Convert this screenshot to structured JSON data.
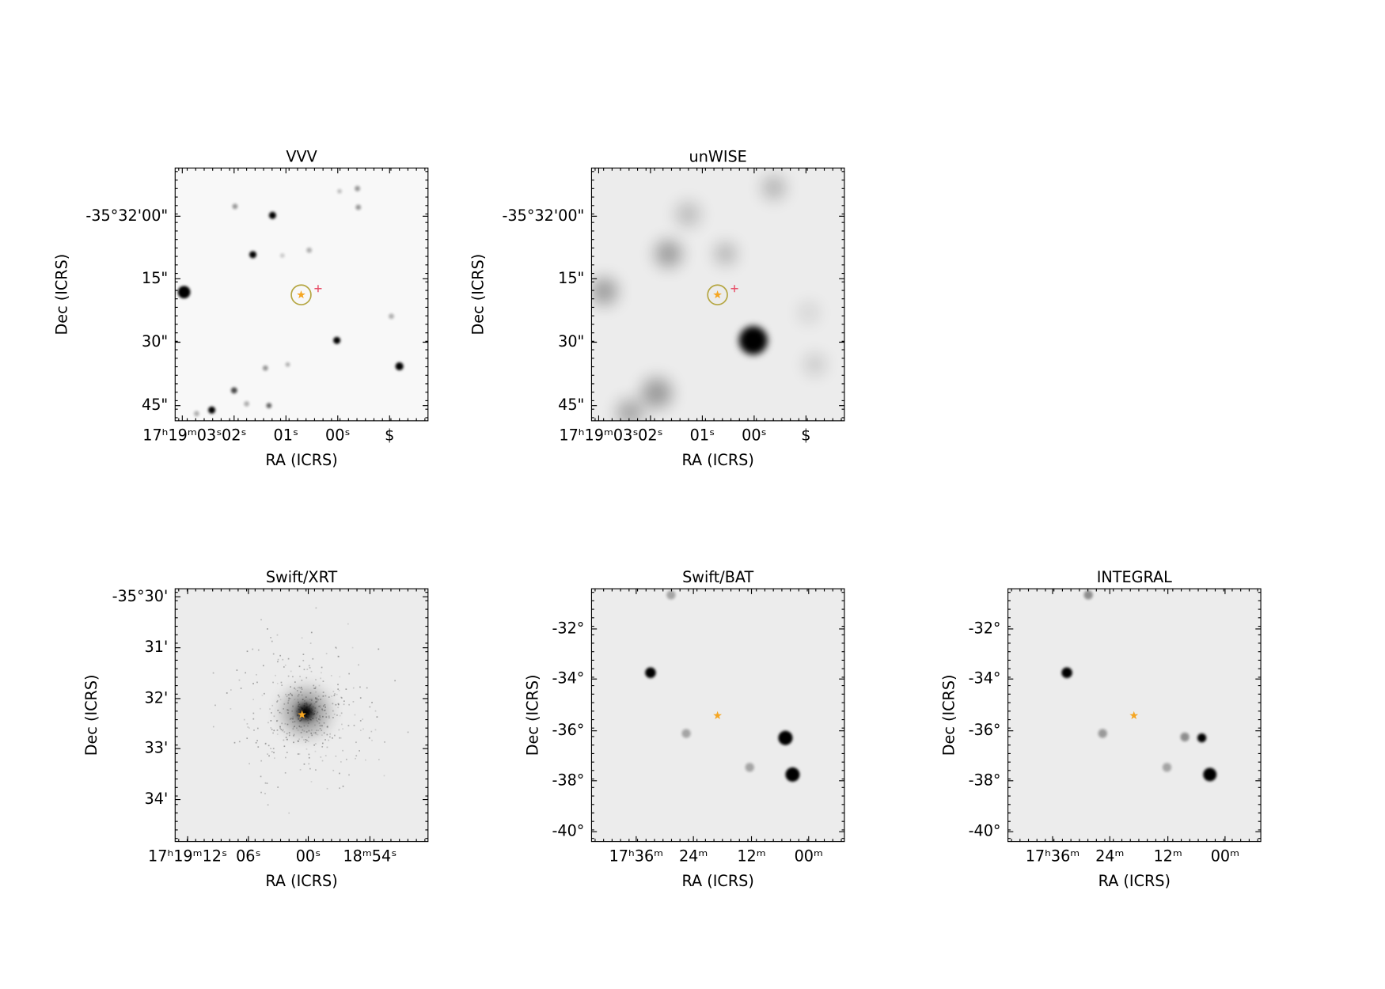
{
  "panels": [
    {
      "title": "VVV",
      "xlabel": "RA (ICRS)",
      "ylabel": "Dec (ICRS)",
      "xticks": [
        "17ʰ19ᵐ03ˢ",
        "02ˢ",
        "01ˢ",
        "00ˢ",
        "$"
      ],
      "yticks": [
        "-35°32'00\"",
        "15\"",
        "30\"",
        "45\""
      ]
    },
    {
      "title": "unWISE",
      "xlabel": "RA (ICRS)",
      "ylabel": "Dec (ICRS)",
      "xticks": [
        "17ʰ19ᵐ03ˢ",
        "02ˢ",
        "01ˢ",
        "00ˢ",
        "$"
      ],
      "yticks": [
        "-35°32'00\"",
        "15\"",
        "30\"",
        "45\""
      ]
    },
    {
      "title": "Swift/XRT",
      "xlabel": "RA (ICRS)",
      "ylabel": "Dec (ICRS)",
      "xticks": [
        "17ʰ19ᵐ12ˢ",
        "06ˢ",
        "00ˢ",
        "18ᵐ54ˢ"
      ],
      "yticks": [
        "-35°30'",
        "31'",
        "32'",
        "33'",
        "34'"
      ]
    },
    {
      "title": "Swift/BAT",
      "xlabel": "RA (ICRS)",
      "ylabel": "Dec (ICRS)",
      "xticks": [
        "17ʰ36ᵐ",
        "24ᵐ",
        "12ᵐ",
        "00ᵐ"
      ],
      "yticks": [
        "-32°",
        "-34°",
        "-36°",
        "-38°",
        "-40°"
      ]
    },
    {
      "title": "INTEGRAL",
      "xlabel": "RA (ICRS)",
      "ylabel": "Dec (ICRS)",
      "xticks": [
        "17ʰ36ᵐ",
        "24ᵐ",
        "12ᵐ",
        "00ᵐ"
      ],
      "yticks": [
        "-32°",
        "-34°",
        "-36°",
        "-38°",
        "-40°"
      ]
    }
  ]
}
